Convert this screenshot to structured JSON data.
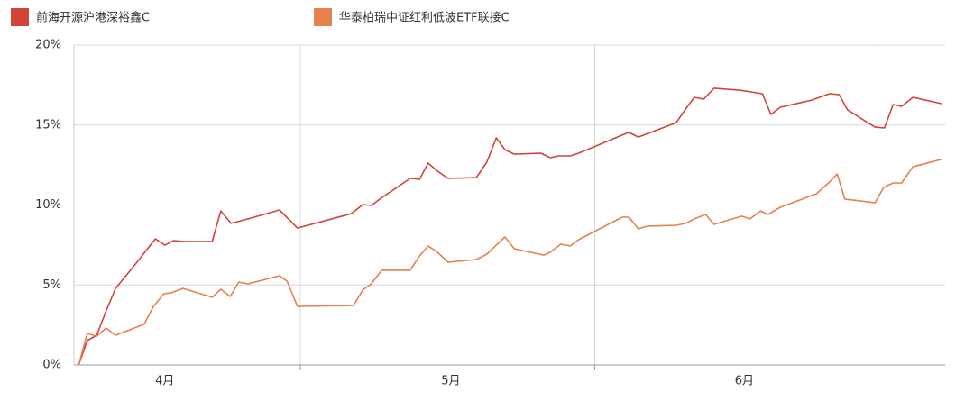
{
  "chart_data": {
    "type": "line",
    "series": [
      {
        "name": "前海开源沪港深裕鑫C",
        "color": "#d0453a",
        "x": [
          0.5,
          1.4,
          2.4,
          3.4,
          4.4,
          6.5,
          8.6,
          9.6,
          10.5,
          11.7,
          14.6,
          15.5,
          16.6,
          18.4,
          21.7,
          23.6,
          29.3,
          30.5,
          31.4,
          32.7,
          35.5,
          36.5,
          37.4,
          38.4,
          39.5,
          42.5,
          43.6,
          44.6,
          45.5,
          46.5,
          49.3,
          50.3,
          51.2,
          52.4,
          53.3,
          57.9,
          58.6,
          59.6,
          63.6,
          64.6,
          65.5,
          66.5,
          67.6,
          70.3,
          72.7,
          73.6,
          74.6,
          77.9,
          79.8,
          80.8,
          81.7,
          84.6,
          85.6,
          86.5,
          87.4,
          88.6,
          91.6
        ],
        "values": [
          0,
          1.52,
          1.86,
          3.38,
          4.79,
          6.31,
          7.89,
          7.49,
          7.77,
          7.72,
          7.72,
          9.63,
          8.85,
          9.13,
          9.69,
          8.56,
          9.46,
          10.03,
          9.97,
          10.54,
          11.66,
          11.61,
          12.62,
          12.11,
          11.66,
          11.72,
          12.68,
          14.2,
          13.46,
          13.18,
          13.24,
          12.96,
          13.07,
          13.07,
          13.24,
          14.37,
          14.54,
          14.25,
          15.15,
          16.0,
          16.73,
          16.62,
          17.3,
          17.18,
          16.96,
          15.66,
          16.11,
          16.56,
          16.96,
          16.9,
          15.94,
          14.87,
          14.82,
          16.28,
          16.17,
          16.73,
          16.34
        ]
      },
      {
        "name": "华泰柏瑞中证红利低波ETF联接C",
        "color": "#e5804f",
        "x": [
          0.5,
          1.4,
          2.4,
          3.4,
          4.4,
          7.4,
          8.4,
          9.5,
          10.3,
          11.5,
          14.6,
          15.5,
          16.5,
          17.4,
          18.4,
          21.7,
          22.5,
          23.6,
          29.5,
          30.5,
          31.4,
          32.5,
          35.5,
          36.5,
          37.4,
          38.4,
          39.5,
          42.5,
          43.6,
          44.6,
          45.5,
          46.5,
          49.6,
          50.3,
          51.4,
          52.4,
          53.3,
          57.9,
          58.6,
          59.6,
          60.6,
          63.6,
          64.6,
          65.5,
          66.7,
          67.6,
          70.5,
          71.4,
          72.5,
          73.3,
          74.6,
          78.4,
          79.8,
          80.6,
          81.4,
          84.6,
          85.5,
          86.5,
          87.4,
          88.6,
          91.6
        ],
        "values": [
          0,
          1.97,
          1.8,
          2.31,
          1.86,
          2.54,
          3.66,
          4.45,
          4.51,
          4.79,
          4.23,
          4.73,
          4.28,
          5.18,
          5.07,
          5.58,
          5.24,
          3.66,
          3.72,
          4.68,
          5.07,
          5.92,
          5.92,
          6.82,
          7.44,
          7.04,
          6.42,
          6.59,
          6.93,
          7.49,
          8.0,
          7.27,
          6.87,
          7.04,
          7.55,
          7.44,
          7.83,
          9.24,
          9.24,
          8.51,
          8.68,
          8.73,
          8.85,
          9.13,
          9.41,
          8.79,
          9.3,
          9.13,
          9.63,
          9.41,
          9.86,
          10.7,
          11.44,
          11.94,
          10.37,
          10.14,
          11.1,
          11.38,
          11.38,
          12.39,
          12.85
        ]
      }
    ],
    "xlim": [
      0,
      92
    ],
    "xticks": [
      {
        "value": 9.6,
        "label": "4月"
      },
      {
        "value": 39.8,
        "label": "5月"
      },
      {
        "value": 70.8,
        "label": "6月"
      }
    ],
    "xgrid": [
      23.9,
      55.0,
      84.9
    ],
    "ylim": [
      0,
      20
    ],
    "yticks": [
      {
        "value": 0,
        "label": "0%"
      },
      {
        "value": 5,
        "label": "5%"
      },
      {
        "value": 10,
        "label": "10%"
      },
      {
        "value": 15,
        "label": "15%"
      },
      {
        "value": 20,
        "label": "20%"
      }
    ],
    "grid": true
  }
}
